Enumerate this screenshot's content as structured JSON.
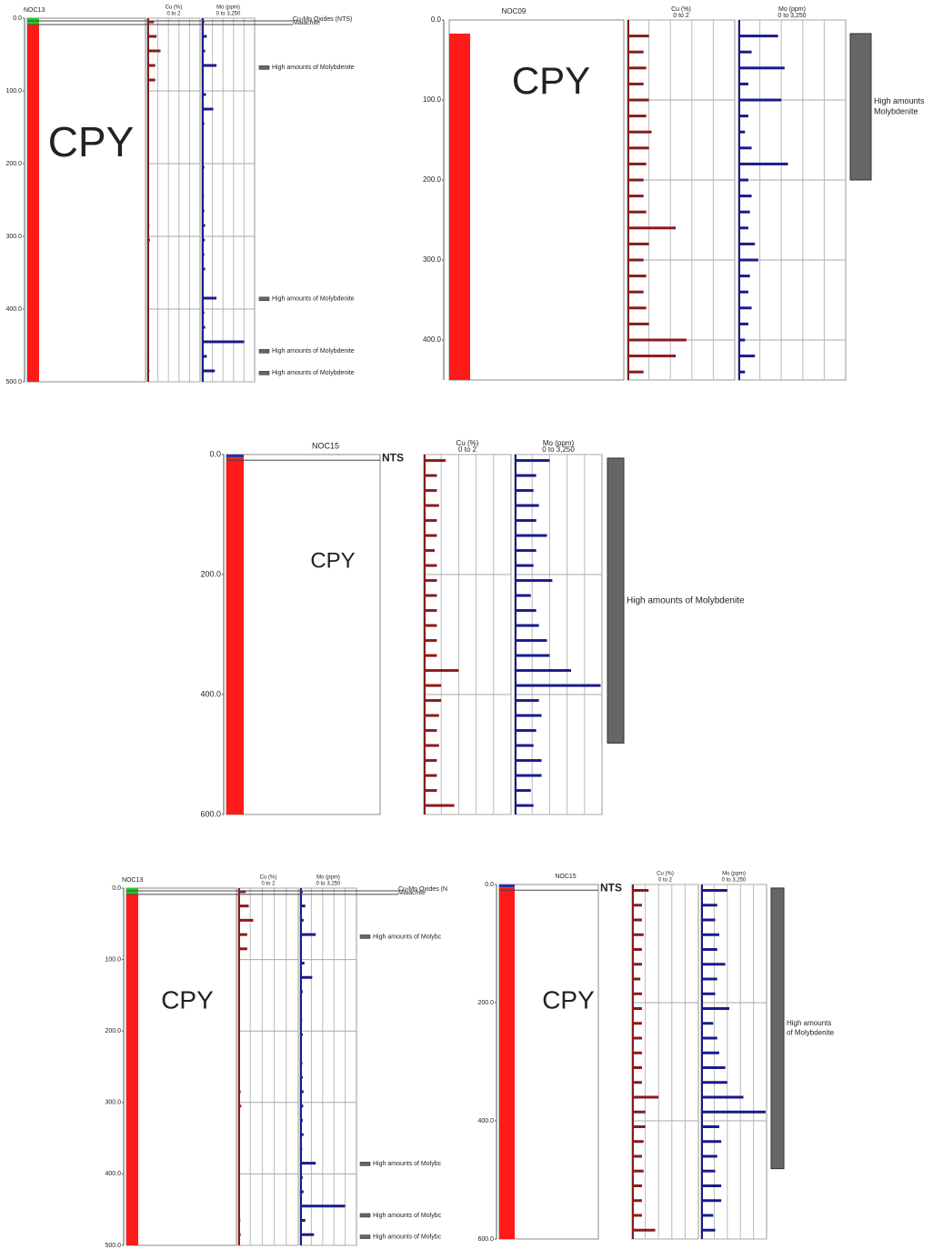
{
  "chart_data": [
    {
      "type": "log",
      "name": "NOC13",
      "ylim": [
        0,
        500
      ],
      "yticks": [
        {
          "value": 0,
          "label": "0.0"
        },
        {
          "value": 100,
          "label": "100.0"
        },
        {
          "value": 200,
          "label": "200.0"
        },
        {
          "value": 300,
          "label": "300.0"
        },
        {
          "value": 400,
          "label": "400.0"
        },
        {
          "value": 500,
          "label": "500.0"
        }
      ],
      "lithology": [
        {
          "from": 0,
          "to": 8,
          "color": "#22cc22"
        },
        {
          "from": 8,
          "to": 500,
          "color": "#ff1a1a"
        }
      ],
      "rock_label": "CPY",
      "depths": [
        5,
        25,
        45,
        65,
        85,
        105,
        125,
        145,
        165,
        185,
        205,
        225,
        245,
        265,
        285,
        305,
        325,
        345,
        365,
        385,
        405,
        425,
        445,
        465,
        485
      ],
      "tracks": [
        {
          "title": "Cu (%)",
          "range": "0 to 2",
          "xlim": [
            0,
            2
          ],
          "color": "#8b1a1a",
          "values": [
            0.25,
            0.35,
            0.5,
            0.3,
            0.3,
            0.05,
            0.04,
            0.03,
            0.05,
            0.04,
            0.03,
            0.04,
            0.05,
            0.06,
            0.08,
            0.1,
            0.06,
            0.05,
            0.04,
            0.03,
            0.03,
            0.04,
            0.05,
            0.07,
            0.08
          ]
        },
        {
          "title": "Mo (ppm)",
          "range": "0 to 3,250",
          "xlim": [
            0,
            3250
          ],
          "color": "#1a1a8b",
          "values": [
            150,
            300,
            200,
            900,
            100,
            250,
            700,
            150,
            100,
            120,
            150,
            100,
            130,
            150,
            200,
            180,
            150,
            200,
            120,
            900,
            150,
            200,
            2600,
            300,
            800
          ]
        }
      ],
      "top_labels": [
        {
          "text": "Cu-Mn Oxides (NTS)",
          "depth": 0
        },
        {
          "text": "Malachite",
          "depth": 5
        }
      ],
      "annotations": [
        {
          "text": "High amounts of Molybdenite",
          "depth": 68
        },
        {
          "text": "High amounts of Molybdenite",
          "depth": 386
        },
        {
          "text": "High amounts of Molybdenite",
          "depth": 458
        },
        {
          "text": "High amounts of Molybdenite",
          "depth": 488
        }
      ]
    },
    {
      "type": "log",
      "name": "NOC09",
      "ylim": [
        0,
        450
      ],
      "yticks": [
        {
          "value": 0,
          "label": "0.0"
        },
        {
          "value": 100,
          "label": "100.0"
        },
        {
          "value": 200,
          "label": "200.0"
        },
        {
          "value": 300,
          "label": "300.0"
        },
        {
          "value": 400,
          "label": "400.0"
        }
      ],
      "lithology": [
        {
          "from": 17,
          "to": 450,
          "color": "#ff1a1a"
        }
      ],
      "rock_label": "CPY",
      "depths": [
        20,
        40,
        60,
        80,
        100,
        120,
        140,
        160,
        180,
        200,
        220,
        240,
        260,
        280,
        300,
        320,
        340,
        360,
        380,
        400,
        420,
        440
      ],
      "tracks": [
        {
          "title": "Cu (%)",
          "range": "0 to 2",
          "xlim": [
            0,
            2
          ],
          "color": "#8b1a1a",
          "values": [
            0.4,
            0.3,
            0.35,
            0.3,
            0.4,
            0.35,
            0.45,
            0.4,
            0.35,
            0.3,
            0.3,
            0.35,
            0.9,
            0.4,
            0.3,
            0.35,
            0.3,
            0.35,
            0.4,
            1.1,
            0.9,
            0.3
          ]
        },
        {
          "title": "Mo (ppm)",
          "range": "0 to 3,250",
          "xlim": [
            0,
            3250
          ],
          "color": "#1a1a8b",
          "values": [
            1200,
            400,
            1400,
            300,
            1300,
            300,
            200,
            400,
            1500,
            300,
            400,
            350,
            300,
            500,
            600,
            350,
            300,
            400,
            300,
            200,
            500,
            200
          ]
        }
      ],
      "top_labels": [],
      "annotations": [],
      "marker": {
        "from": 17,
        "to": 200,
        "text": [
          "High amounts",
          "Molybdenite"
        ]
      }
    },
    {
      "type": "log",
      "name": "NOC15",
      "ylim": [
        0,
        600
      ],
      "yticks": [
        {
          "value": 0,
          "label": "0.0"
        },
        {
          "value": 200,
          "label": "200.0"
        },
        {
          "value": 400,
          "label": "400.0"
        },
        {
          "value": 600,
          "label": "600.0"
        }
      ],
      "lithology": [
        {
          "from": 0,
          "to": 5,
          "color": "#2233aa"
        },
        {
          "from": 5,
          "to": 600,
          "color": "#ff1a1a"
        }
      ],
      "rock_label": "CPY",
      "depths": [
        10,
        35,
        60,
        85,
        110,
        135,
        160,
        185,
        210,
        235,
        260,
        285,
        310,
        335,
        360,
        385,
        410,
        435,
        460,
        485,
        510,
        535,
        560,
        585
      ],
      "tracks": [
        {
          "title": "Cu (%)",
          "range": "0 to 2",
          "xlim": [
            0,
            2
          ],
          "color": "#8b1a1a",
          "values": [
            0.5,
            0.3,
            0.3,
            0.35,
            0.3,
            0.3,
            0.25,
            0.3,
            0.3,
            0.3,
            0.3,
            0.3,
            0.3,
            0.3,
            0.8,
            0.4,
            0.4,
            0.35,
            0.3,
            0.35,
            0.3,
            0.3,
            0.3,
            0.7
          ]
        },
        {
          "title": "Mo (ppm)",
          "range": "0 to 3,250",
          "xlim": [
            0,
            3250
          ],
          "color": "#1a1a8b",
          "values": [
            1300,
            800,
            700,
            900,
            800,
            1200,
            800,
            700,
            1400,
            600,
            800,
            900,
            1200,
            1300,
            2100,
            3200,
            900,
            1000,
            800,
            700,
            1000,
            1000,
            600,
            700
          ]
        }
      ],
      "top_labels": [
        {
          "text": "NTS",
          "depth": 5
        }
      ],
      "annotations": [],
      "marker": {
        "from": 6,
        "to": 481,
        "text": [
          "High amounts of Molybdenite"
        ]
      }
    },
    {
      "type": "log",
      "name": "NOC13",
      "ylim": [
        0,
        500
      ],
      "yticks": [
        {
          "value": 0,
          "label": "0.0"
        },
        {
          "value": 100,
          "label": "100.0"
        },
        {
          "value": 200,
          "label": "200.0"
        },
        {
          "value": 300,
          "label": "300.0"
        },
        {
          "value": 400,
          "label": "400.0"
        },
        {
          "value": 500,
          "label": "500.0"
        }
      ],
      "lithology": [
        {
          "from": 0,
          "to": 8,
          "color": "#22cc22"
        },
        {
          "from": 8,
          "to": 500,
          "color": "#ff1a1a"
        }
      ],
      "rock_label": "CPY",
      "depths": [
        5,
        25,
        45,
        65,
        85,
        105,
        125,
        145,
        165,
        185,
        205,
        225,
        245,
        265,
        285,
        305,
        325,
        345,
        365,
        385,
        405,
        425,
        445,
        465,
        485
      ],
      "tracks": [
        {
          "title": "Cu (%)",
          "range": "0 to 2",
          "xlim": [
            0,
            2
          ],
          "color": "#8b1a1a",
          "values": [
            0.25,
            0.35,
            0.5,
            0.3,
            0.3,
            0.05,
            0.04,
            0.03,
            0.05,
            0.04,
            0.03,
            0.04,
            0.05,
            0.06,
            0.08,
            0.1,
            0.06,
            0.05,
            0.04,
            0.03,
            0.03,
            0.04,
            0.05,
            0.07,
            0.08
          ]
        },
        {
          "title": "Mo (ppm)",
          "range": "0 to 3,250",
          "xlim": [
            0,
            3250
          ],
          "color": "#1a1a8b",
          "values": [
            150,
            300,
            200,
            900,
            100,
            250,
            700,
            150,
            100,
            120,
            150,
            100,
            130,
            150,
            200,
            180,
            150,
            200,
            120,
            900,
            150,
            200,
            2600,
            300,
            800
          ]
        }
      ],
      "top_labels": [
        {
          "text": "Cu-Mn Oxides (N",
          "depth": 0
        },
        {
          "text": "Malachite",
          "depth": 5
        }
      ],
      "annotations": [
        {
          "text": "High amounts of Molybc",
          "depth": 68
        },
        {
          "text": "High amounts of Molybc",
          "depth": 386
        },
        {
          "text": "High amounts of Molybc",
          "depth": 458
        },
        {
          "text": "High amounts of Molybc",
          "depth": 488
        }
      ]
    },
    {
      "type": "log",
      "name": "NOC15",
      "ylim": [
        0,
        600
      ],
      "yticks": [
        {
          "value": 0,
          "label": "0.0"
        },
        {
          "value": 200,
          "label": "200.0"
        },
        {
          "value": 400,
          "label": "400.0"
        },
        {
          "value": 600,
          "label": "600.0"
        }
      ],
      "lithology": [
        {
          "from": 0,
          "to": 5,
          "color": "#2233aa"
        },
        {
          "from": 5,
          "to": 600,
          "color": "#ff1a1a"
        }
      ],
      "rock_label": "CPY",
      "depths": [
        10,
        35,
        60,
        85,
        110,
        135,
        160,
        185,
        210,
        235,
        260,
        285,
        310,
        335,
        360,
        385,
        410,
        435,
        460,
        485,
        510,
        535,
        560,
        585
      ],
      "tracks": [
        {
          "title": "Cu (%)",
          "range": "0 to 2",
          "xlim": [
            0,
            2
          ],
          "color": "#8b1a1a",
          "values": [
            0.5,
            0.3,
            0.3,
            0.35,
            0.3,
            0.3,
            0.25,
            0.3,
            0.3,
            0.3,
            0.3,
            0.3,
            0.3,
            0.3,
            0.8,
            0.4,
            0.4,
            0.35,
            0.3,
            0.35,
            0.3,
            0.3,
            0.3,
            0.7
          ]
        },
        {
          "title": "Mo (ppm)",
          "range": "0 to 3,250",
          "xlim": [
            0,
            3250
          ],
          "color": "#1a1a8b",
          "values": [
            1300,
            800,
            700,
            900,
            800,
            1200,
            800,
            700,
            1400,
            600,
            800,
            900,
            1200,
            1300,
            2100,
            3200,
            900,
            1000,
            800,
            700,
            1000,
            1000,
            600,
            700
          ]
        }
      ],
      "top_labels": [
        {
          "text": "NTS",
          "depth": 5
        }
      ],
      "annotations": [],
      "marker": {
        "from": 6,
        "to": 481,
        "text": [
          "High amounts",
          "of Molybdenite"
        ]
      }
    }
  ]
}
